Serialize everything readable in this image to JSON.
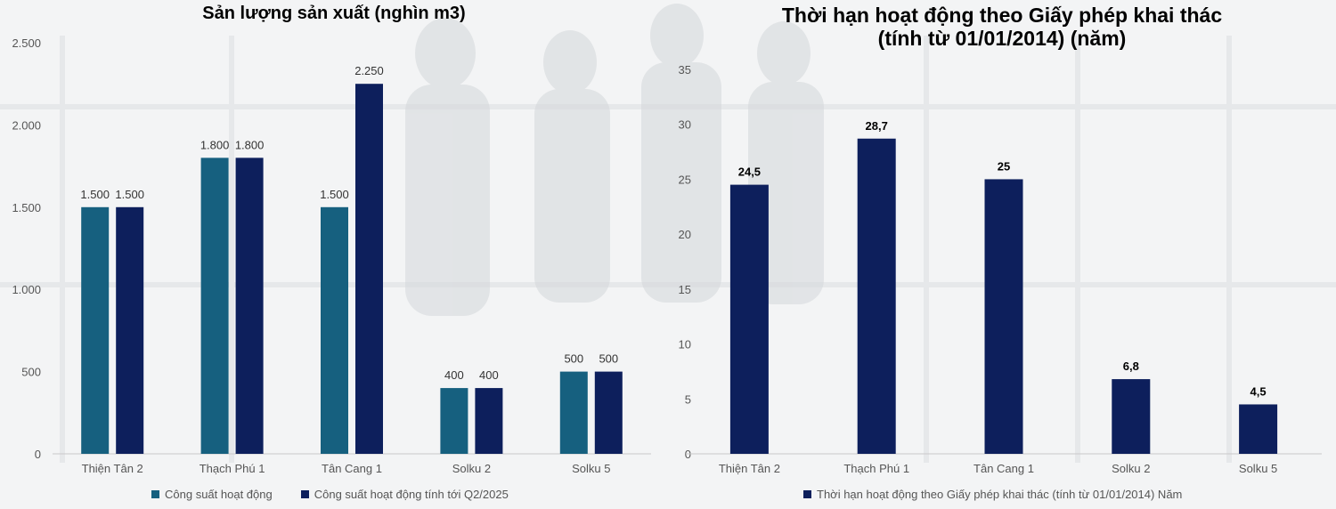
{
  "colors": {
    "series_light": "#16607f",
    "series_dark": "#0d1f5c",
    "axis_text": "#555555",
    "value_label": "#333333"
  },
  "chart_data": [
    {
      "type": "bar",
      "title": "Sản lượng sản xuất (nghìn m3)",
      "categories": [
        "Thiện Tân 2",
        "Thạch Phú 1",
        "Tân Cang 1",
        "Solku 2",
        "Solku 5"
      ],
      "series": [
        {
          "name": "Công suất hoạt động",
          "values": [
            1500,
            1800,
            1500,
            400,
            500
          ],
          "labels": [
            "1.500",
            "1.800",
            "1.500",
            "400",
            "500"
          ],
          "color": "#16607f"
        },
        {
          "name": "Công suất hoạt động tính tới Q2/2025",
          "values": [
            1500,
            1800,
            2250,
            400,
            500
          ],
          "labels": [
            "1.500",
            "1.800",
            "2.250",
            "400",
            "500"
          ],
          "color": "#0d1f5c"
        }
      ],
      "yticks": [
        0,
        500,
        1000,
        1500,
        2000,
        2500
      ],
      "ytick_labels": [
        "0",
        "500",
        "1.000",
        "1.500",
        "2.000",
        "2.500"
      ],
      "ylim": [
        0,
        2500
      ],
      "grid": false,
      "legend": "bottom"
    },
    {
      "type": "bar",
      "title": "Thời hạn hoạt động theo Giấy phép khai thác (tính từ 01/01/2014) (năm)",
      "title_lines": [
        "Thời hạn hoạt động theo Giấy phép khai thác",
        "(tính từ 01/01/2014) (năm)"
      ],
      "categories": [
        "Thiện Tân 2",
        "Thạch Phú 1",
        "Tân Cang 1",
        "Solku 2",
        "Solku 5"
      ],
      "series": [
        {
          "name": "Thời hạn hoạt động theo Giấy phép khai thác (tính từ 01/01/2014) Năm",
          "values": [
            24.5,
            28.7,
            25,
            6.8,
            4.5
          ],
          "labels": [
            "24,5",
            "28,7",
            "25",
            "6,8",
            "4,5"
          ],
          "color": "#0d1f5c"
        }
      ],
      "yticks": [
        0,
        5,
        10,
        15,
        20,
        25,
        30,
        35
      ],
      "ytick_labels": [
        "0",
        "5",
        "10",
        "15",
        "20",
        "25",
        "30",
        "35"
      ],
      "ylim": [
        0,
        35
      ],
      "grid": false,
      "legend": "bottom"
    }
  ]
}
